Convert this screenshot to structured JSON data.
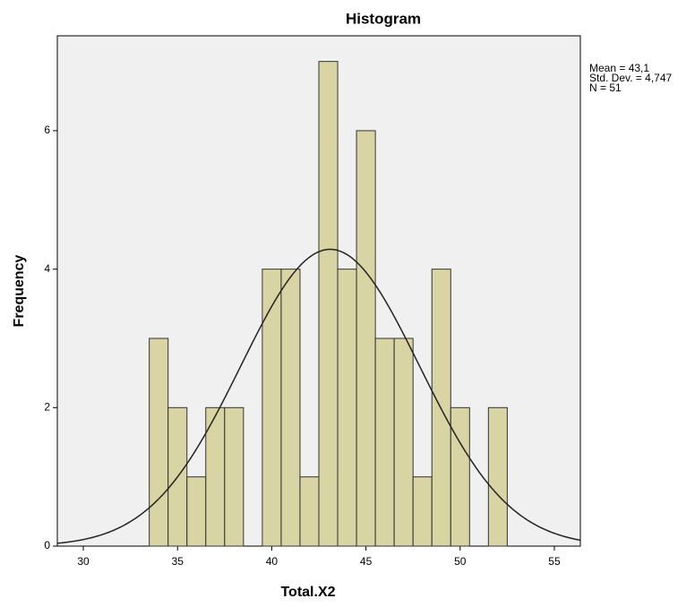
{
  "chart_data": {
    "type": "histogram",
    "title": "Histogram",
    "x_label": "Total.X2",
    "y_label": "Frequency",
    "bins": [
      33.5,
      34.5,
      35.5,
      36.5,
      37.5,
      38.5,
      39.5,
      40.5,
      41.5,
      42.5,
      43.5,
      44.5,
      45.5,
      46.5,
      47.5,
      48.5,
      49.5,
      50.5,
      51.5,
      52.5
    ],
    "values": [
      3,
      2,
      1,
      2,
      2,
      0,
      4,
      4,
      1,
      7,
      4,
      6,
      3,
      3,
      1,
      4,
      2,
      0,
      2
    ],
    "color": "#d4cf96",
    "edge_color": "#333333",
    "background": "#f0f0f0",
    "xlim": [
      28.62,
      56.38
    ],
    "xticks": [
      30,
      35,
      40,
      45,
      50,
      55
    ],
    "ylim": [
      0,
      7.37
    ],
    "yticks": [
      0,
      2,
      4,
      6
    ],
    "stats": [
      {
        "value": 43.1,
        "label": "Mean = 43,1"
      },
      {
        "value": 4.747,
        "label": "Std. Dev. = 4,747"
      },
      {
        "value": 51,
        "label": "N = 51"
      }
    ]
  }
}
